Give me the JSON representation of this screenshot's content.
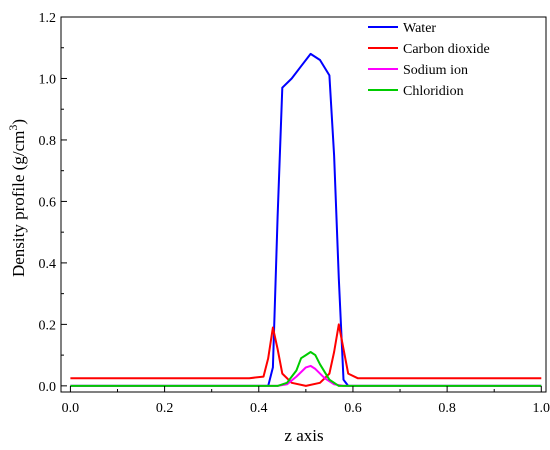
{
  "chart_data": {
    "type": "line",
    "xlabel": "z axis",
    "ylabel": "Density profile (g/cm",
    "ylabel_sup": "3",
    "ylabel_close": ")",
    "xlim": [
      -0.02,
      1.01
    ],
    "ylim": [
      -0.02,
      1.2
    ],
    "xticks": [
      "0.0",
      "0.2",
      "0.4",
      "0.6",
      "0.8",
      "1.0"
    ],
    "yticks": [
      "0.0",
      "0.2",
      "0.4",
      "0.6",
      "0.8",
      "1.0",
      "1.2"
    ],
    "grid": false,
    "legend_position": "top-right",
    "series": [
      {
        "name": "Water",
        "color": "#0000ff",
        "x": [
          0.0,
          0.42,
          0.43,
          0.44,
          0.45,
          0.47,
          0.49,
          0.51,
          0.53,
          0.55,
          0.56,
          0.57,
          0.58,
          0.59,
          1.0
        ],
        "y": [
          0.0,
          0.0,
          0.06,
          0.55,
          0.97,
          1.0,
          1.04,
          1.08,
          1.06,
          1.01,
          0.75,
          0.35,
          0.02,
          0.0,
          0.0
        ]
      },
      {
        "name": "Carbon dioxide",
        "color": "#ff0000",
        "x": [
          0.0,
          0.2,
          0.38,
          0.41,
          0.42,
          0.43,
          0.44,
          0.45,
          0.47,
          0.5,
          0.53,
          0.55,
          0.56,
          0.57,
          0.58,
          0.59,
          0.61,
          0.8,
          1.0
        ],
        "y": [
          0.025,
          0.025,
          0.025,
          0.03,
          0.09,
          0.19,
          0.12,
          0.04,
          0.01,
          0.0,
          0.01,
          0.04,
          0.11,
          0.2,
          0.12,
          0.04,
          0.025,
          0.025,
          0.025
        ]
      },
      {
        "name": "Sodium ion",
        "color": "#ff00ff",
        "x": [
          0.0,
          0.44,
          0.46,
          0.48,
          0.5,
          0.51,
          0.52,
          0.54,
          0.56,
          0.58,
          1.0
        ],
        "y": [
          0.0,
          0.0,
          0.005,
          0.03,
          0.06,
          0.065,
          0.055,
          0.025,
          0.005,
          0.0,
          0.0
        ]
      },
      {
        "name": "Chloridion",
        "color": "#00cc00",
        "x": [
          0.0,
          0.44,
          0.46,
          0.48,
          0.49,
          0.5,
          0.51,
          0.52,
          0.53,
          0.55,
          0.57,
          0.58,
          1.0
        ],
        "y": [
          0.0,
          0.0,
          0.01,
          0.05,
          0.09,
          0.1,
          0.11,
          0.1,
          0.07,
          0.02,
          0.0,
          0.0,
          0.0
        ]
      }
    ]
  }
}
